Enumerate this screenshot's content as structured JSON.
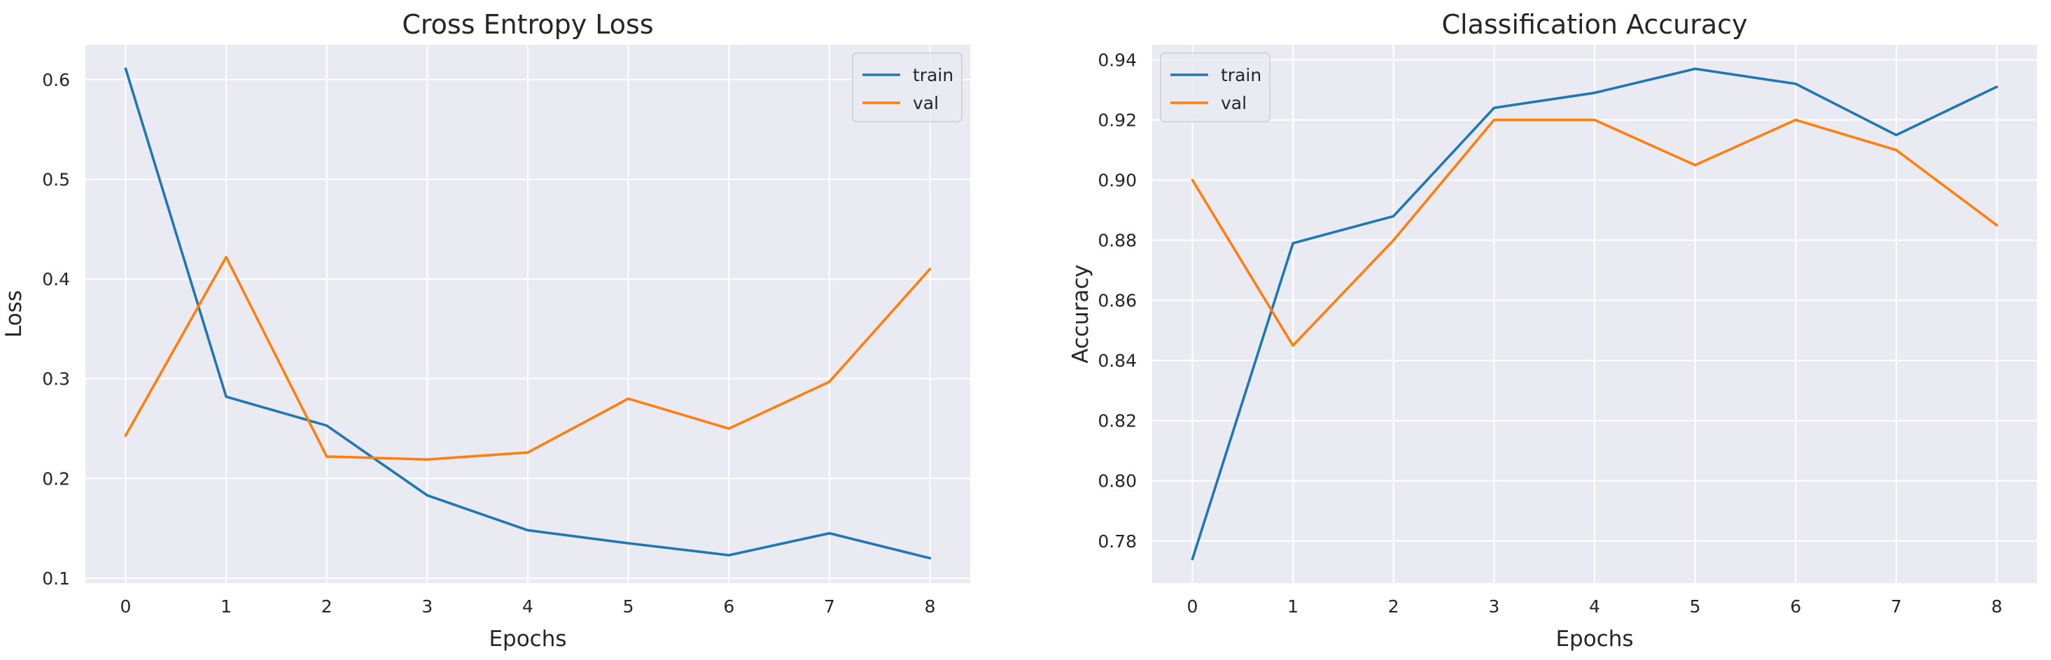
{
  "chart_data": [
    {
      "type": "line",
      "title": "Cross Entropy Loss",
      "xlabel": "Epochs",
      "ylabel": "Loss",
      "x": [
        0,
        1,
        2,
        3,
        4,
        5,
        6,
        7,
        8
      ],
      "xlim": [
        -0.4,
        8.4
      ],
      "ylim": [
        0.095,
        0.635
      ],
      "xticks": [
        0,
        1,
        2,
        3,
        4,
        5,
        6,
        7,
        8
      ],
      "yticks": [
        0.1,
        0.2,
        0.3,
        0.4,
        0.5,
        0.6
      ],
      "ytick_labels": [
        "0.1",
        "0.2",
        "0.3",
        "0.4",
        "0.5",
        "0.6"
      ],
      "grid": true,
      "legend_position": "top-right",
      "series": [
        {
          "name": "train",
          "color": "#1f77b4",
          "values": [
            0.611,
            0.282,
            0.253,
            0.183,
            0.148,
            0.135,
            0.123,
            0.145,
            0.12
          ]
        },
        {
          "name": "val",
          "color": "#ff7f0e",
          "values": [
            0.243,
            0.422,
            0.222,
            0.219,
            0.226,
            0.28,
            0.25,
            0.297,
            0.41
          ]
        }
      ]
    },
    {
      "type": "line",
      "title": "Classification Accuracy",
      "xlabel": "Epochs",
      "ylabel": "Accuracy",
      "x": [
        0,
        1,
        2,
        3,
        4,
        5,
        6,
        7,
        8
      ],
      "xlim": [
        -0.4,
        8.4
      ],
      "ylim": [
        0.766,
        0.945
      ],
      "xticks": [
        0,
        1,
        2,
        3,
        4,
        5,
        6,
        7,
        8
      ],
      "yticks": [
        0.78,
        0.8,
        0.82,
        0.84,
        0.86,
        0.88,
        0.9,
        0.92,
        0.94
      ],
      "ytick_labels": [
        "0.78",
        "0.80",
        "0.82",
        "0.84",
        "0.86",
        "0.88",
        "0.90",
        "0.92",
        "0.94"
      ],
      "grid": true,
      "legend_position": "top-left",
      "series": [
        {
          "name": "train",
          "color": "#1f77b4",
          "values": [
            0.774,
            0.879,
            0.888,
            0.924,
            0.929,
            0.937,
            0.932,
            0.915,
            0.931
          ]
        },
        {
          "name": "val",
          "color": "#ff7f0e",
          "values": [
            0.9,
            0.845,
            0.88,
            0.92,
            0.92,
            0.905,
            0.92,
            0.91,
            0.885
          ]
        }
      ]
    }
  ],
  "style": {
    "panel_background": "#eaeaf2",
    "grid_color": "#ffffff",
    "text_color": "#262626"
  }
}
